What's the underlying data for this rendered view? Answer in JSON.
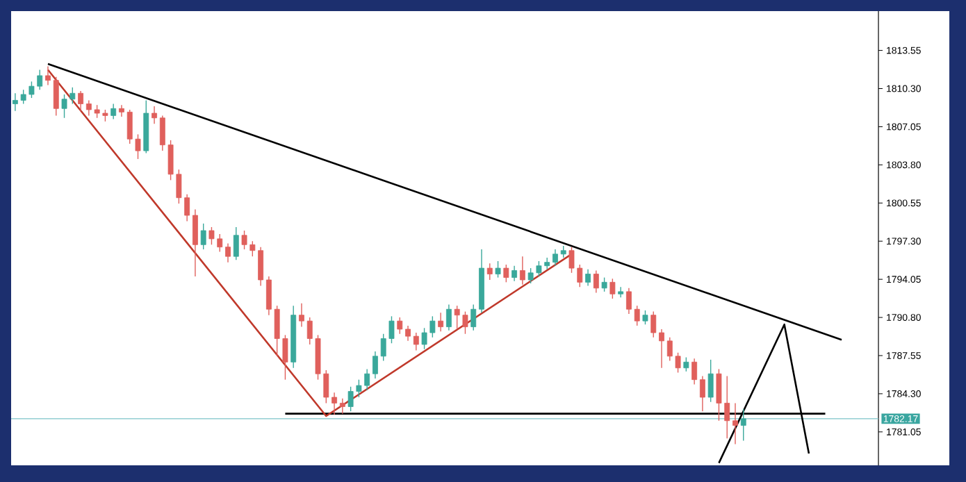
{
  "chart_data": {
    "type": "candlestick",
    "categories": [
      null,
      null,
      null,
      null,
      null,
      null,
      null,
      null,
      null,
      null,
      null,
      null,
      null,
      null,
      null,
      null,
      null,
      null,
      null,
      null,
      null,
      null,
      null,
      null,
      null,
      null,
      null,
      null,
      null,
      null,
      null,
      null,
      null,
      null,
      null,
      null,
      null,
      null,
      null,
      null,
      null,
      null,
      null,
      null,
      null,
      null,
      null,
      null,
      null,
      null,
      null,
      null,
      null,
      null,
      null,
      null,
      null,
      null,
      null,
      null,
      null,
      null,
      null,
      null,
      null,
      null,
      null,
      null,
      null,
      null,
      null,
      null,
      null,
      null,
      null,
      null,
      null,
      null,
      null,
      null,
      null,
      null,
      null,
      null,
      null,
      null,
      null,
      null,
      null,
      null,
      null,
      null,
      null,
      null,
      null,
      null,
      null,
      null,
      null,
      null,
      null,
      null,
      null,
      null,
      null,
      null
    ],
    "ohlc": [
      [
        1809.0,
        1809.9,
        1808.4,
        1809.3
      ],
      [
        1809.3,
        1810.2,
        1809.0,
        1809.8
      ],
      [
        1809.8,
        1810.9,
        1809.5,
        1810.5
      ],
      [
        1810.5,
        1811.9,
        1810.2,
        1811.4
      ],
      [
        1811.4,
        1812.2,
        1810.6,
        1811.0
      ],
      [
        1811.0,
        1811.3,
        1808.0,
        1808.6
      ],
      [
        1808.6,
        1809.8,
        1807.8,
        1809.4
      ],
      [
        1809.4,
        1810.4,
        1809.0,
        1809.9
      ],
      [
        1809.9,
        1810.1,
        1808.4,
        1809.0
      ],
      [
        1809.0,
        1809.3,
        1808.0,
        1808.5
      ],
      [
        1808.5,
        1808.9,
        1807.8,
        1808.2
      ],
      [
        1808.2,
        1808.5,
        1807.5,
        1808.0
      ],
      [
        1808.0,
        1809.0,
        1807.7,
        1808.6
      ],
      [
        1808.6,
        1808.9,
        1807.9,
        1808.3
      ],
      [
        1808.3,
        1808.5,
        1805.6,
        1806.0
      ],
      [
        1806.0,
        1806.4,
        1804.3,
        1805.0
      ],
      [
        1805.0,
        1809.3,
        1804.8,
        1808.2
      ],
      [
        1808.2,
        1808.8,
        1807.3,
        1807.8
      ],
      [
        1807.8,
        1808.0,
        1805.0,
        1805.5
      ],
      [
        1805.5,
        1805.9,
        1802.5,
        1803.0
      ],
      [
        1803.0,
        1803.4,
        1800.5,
        1801.0
      ],
      [
        1801.0,
        1801.3,
        1799.0,
        1799.5
      ],
      [
        1799.5,
        1800.0,
        1794.3,
        1797.0
      ],
      [
        1797.0,
        1798.8,
        1796.6,
        1798.2
      ],
      [
        1798.2,
        1798.5,
        1797.0,
        1797.5
      ],
      [
        1797.5,
        1797.9,
        1796.4,
        1796.8
      ],
      [
        1796.8,
        1797.1,
        1795.5,
        1796.0
      ],
      [
        1796.0,
        1798.5,
        1795.7,
        1797.8
      ],
      [
        1797.8,
        1798.2,
        1796.6,
        1797.0
      ],
      [
        1797.0,
        1797.3,
        1796.0,
        1796.5
      ],
      [
        1796.5,
        1796.8,
        1793.5,
        1794.0
      ],
      [
        1794.0,
        1794.3,
        1791.0,
        1791.5
      ],
      [
        1791.5,
        1791.8,
        1787.5,
        1789.0
      ],
      [
        1789.0,
        1789.3,
        1785.5,
        1787.0
      ],
      [
        1787.0,
        1791.8,
        1786.5,
        1791.0
      ],
      [
        1791.0,
        1792.0,
        1790.0,
        1790.5
      ],
      [
        1790.5,
        1790.8,
        1788.5,
        1789.0
      ],
      [
        1789.0,
        1789.3,
        1785.5,
        1786.0
      ],
      [
        1786.0,
        1786.3,
        1783.5,
        1784.0
      ],
      [
        1784.0,
        1784.4,
        1782.5,
        1783.5
      ],
      [
        1783.5,
        1783.9,
        1782.6,
        1783.2
      ],
      [
        1783.2,
        1784.9,
        1782.8,
        1784.5
      ],
      [
        1784.5,
        1785.5,
        1784.0,
        1785.0
      ],
      [
        1785.0,
        1786.4,
        1784.6,
        1786.0
      ],
      [
        1786.0,
        1787.9,
        1785.6,
        1787.5
      ],
      [
        1787.5,
        1789.4,
        1787.1,
        1789.0
      ],
      [
        1789.0,
        1790.9,
        1788.6,
        1790.5
      ],
      [
        1790.5,
        1790.8,
        1789.4,
        1789.8
      ],
      [
        1789.8,
        1790.1,
        1788.8,
        1789.2
      ],
      [
        1789.2,
        1789.5,
        1788.0,
        1788.5
      ],
      [
        1788.5,
        1789.9,
        1788.1,
        1789.5
      ],
      [
        1789.5,
        1790.9,
        1789.1,
        1790.5
      ],
      [
        1790.5,
        1791.2,
        1789.6,
        1790.0
      ],
      [
        1790.0,
        1791.9,
        1789.7,
        1791.5
      ],
      [
        1791.5,
        1791.8,
        1789.8,
        1791.0
      ],
      [
        1791.0,
        1791.3,
        1789.4,
        1790.0
      ],
      [
        1790.0,
        1791.9,
        1789.7,
        1791.5
      ],
      [
        1791.5,
        1796.6,
        1791.2,
        1795.0
      ],
      [
        1795.0,
        1795.4,
        1794.0,
        1794.5
      ],
      [
        1794.5,
        1795.6,
        1794.2,
        1795.0
      ],
      [
        1795.0,
        1795.3,
        1793.8,
        1794.2
      ],
      [
        1794.2,
        1795.2,
        1793.9,
        1794.8
      ],
      [
        1794.8,
        1796.0,
        1793.6,
        1794.0
      ],
      [
        1794.0,
        1795.0,
        1793.7,
        1794.6
      ],
      [
        1794.6,
        1795.6,
        1794.3,
        1795.2
      ],
      [
        1795.2,
        1795.9,
        1794.9,
        1795.5
      ],
      [
        1795.5,
        1796.6,
        1795.2,
        1796.2
      ],
      [
        1796.2,
        1796.9,
        1795.9,
        1796.5
      ],
      [
        1796.5,
        1796.8,
        1794.6,
        1795.0
      ],
      [
        1795.0,
        1795.3,
        1793.4,
        1793.8
      ],
      [
        1793.8,
        1794.9,
        1793.5,
        1794.5
      ],
      [
        1794.5,
        1794.8,
        1792.9,
        1793.3
      ],
      [
        1793.3,
        1794.2,
        1793.0,
        1793.8
      ],
      [
        1793.8,
        1794.1,
        1792.4,
        1792.8
      ],
      [
        1792.8,
        1793.4,
        1792.5,
        1793.0
      ],
      [
        1793.0,
        1793.3,
        1791.1,
        1791.5
      ],
      [
        1791.5,
        1791.8,
        1790.1,
        1790.5
      ],
      [
        1790.5,
        1791.4,
        1790.2,
        1791.0
      ],
      [
        1791.0,
        1791.3,
        1789.1,
        1789.5
      ],
      [
        1789.5,
        1789.8,
        1786.5,
        1788.8
      ],
      [
        1788.8,
        1789.1,
        1787.1,
        1787.5
      ],
      [
        1787.5,
        1787.8,
        1786.1,
        1786.5
      ],
      [
        1786.5,
        1787.4,
        1786.2,
        1787.0
      ],
      [
        1787.0,
        1787.3,
        1785.1,
        1785.5
      ],
      [
        1785.5,
        1785.8,
        1782.8,
        1784.0
      ],
      [
        1784.0,
        1787.2,
        1783.6,
        1786.0
      ],
      [
        1786.0,
        1786.4,
        1782.0,
        1783.5
      ],
      [
        1783.5,
        1785.8,
        1780.5,
        1782.0
      ],
      [
        1782.0,
        1783.5,
        1780.0,
        1781.6
      ],
      [
        1781.6,
        1783.0,
        1780.3,
        1782.17
      ],
      null,
      null,
      null,
      null,
      null,
      null,
      null,
      null,
      null,
      null,
      null,
      null,
      null,
      null,
      null,
      null
    ],
    "colors": [
      "#3aa89b",
      "#3aa89b",
      "#3aa89b",
      "#3aa89b",
      "#e0605c",
      "#e0605c",
      "#3aa89b",
      "#3aa89b",
      "#e0605c",
      "#e0605c",
      "#e0605c",
      "#e0605c",
      "#3aa89b",
      "#e0605c",
      "#e0605c",
      "#e0605c",
      "#3aa89b",
      "#e0605c",
      "#e0605c",
      "#e0605c",
      "#e0605c",
      "#e0605c",
      "#e0605c",
      "#3aa89b",
      "#e0605c",
      "#e0605c",
      "#e0605c",
      "#3aa89b",
      "#e0605c",
      "#e0605c",
      "#e0605c",
      "#e0605c",
      "#e0605c",
      "#e0605c",
      "#3aa89b",
      "#e0605c",
      "#e0605c",
      "#e0605c",
      "#e0605c",
      "#e0605c",
      "#e0605c",
      "#3aa89b",
      "#3aa89b",
      "#3aa89b",
      "#3aa89b",
      "#3aa89b",
      "#3aa89b",
      "#e0605c",
      "#e0605c",
      "#e0605c",
      "#3aa89b",
      "#3aa89b",
      "#e0605c",
      "#3aa89b",
      "#e0605c",
      "#e0605c",
      "#3aa89b",
      "#3aa89b",
      "#e0605c",
      "#3aa89b",
      "#e0605c",
      "#3aa89b",
      "#e0605c",
      "#3aa89b",
      "#3aa89b",
      "#3aa89b",
      "#3aa89b",
      "#3aa89b",
      "#e0605c",
      "#e0605c",
      "#3aa89b",
      "#e0605c",
      "#3aa89b",
      "#e0605c",
      "#3aa89b",
      "#e0605c",
      "#e0605c",
      "#3aa89b",
      "#e0605c",
      "#e0605c",
      "#e0605c",
      "#e0605c",
      "#3aa89b",
      "#e0605c",
      "#e0605c",
      "#3aa89b",
      "#e0605c",
      "#e0605c",
      "#e0605c",
      "#3aa89b",
      null,
      null,
      null,
      null,
      null,
      null,
      null,
      null,
      null,
      null,
      null,
      null,
      null,
      null,
      null,
      null
    ],
    "series": [
      {
        "type": "line",
        "color": "#000000",
        "values": [
          null,
          null,
          null,
          null,
          1812.4,
          null,
          null,
          null,
          null,
          null,
          null,
          null,
          null,
          null,
          null,
          null,
          null,
          null,
          null,
          null,
          null,
          null,
          null,
          null,
          null,
          null,
          null,
          null,
          null,
          null,
          null,
          null,
          null,
          null,
          null,
          null,
          null,
          null,
          null,
          null,
          null,
          null,
          null,
          null,
          null,
          null,
          null,
          null,
          null,
          null,
          null,
          null,
          null,
          null,
          null,
          null,
          null,
          null,
          null,
          null,
          null,
          null,
          null,
          null,
          null,
          null,
          null,
          null,
          null,
          null,
          null,
          null,
          null,
          null,
          null,
          null,
          null,
          null,
          null,
          null,
          null,
          null,
          null,
          null,
          null,
          null,
          null,
          null,
          null,
          null,
          null,
          null,
          null,
          null,
          null,
          null,
          null,
          null,
          null,
          null,
          null,
          1788.9,
          null,
          null,
          null,
          null
        ]
      },
      {
        "type": "line",
        "color": "#000000",
        "values": [
          null,
          null,
          null,
          null,
          null,
          null,
          null,
          null,
          null,
          null,
          null,
          null,
          null,
          null,
          null,
          null,
          null,
          null,
          null,
          null,
          null,
          null,
          null,
          null,
          null,
          null,
          null,
          null,
          null,
          null,
          null,
          null,
          null,
          1782.6,
          null,
          null,
          null,
          null,
          null,
          null,
          null,
          null,
          null,
          null,
          null,
          null,
          null,
          null,
          null,
          null,
          null,
          null,
          null,
          null,
          null,
          null,
          null,
          null,
          null,
          null,
          null,
          null,
          null,
          null,
          null,
          null,
          null,
          null,
          null,
          null,
          null,
          null,
          null,
          null,
          null,
          null,
          null,
          null,
          null,
          null,
          null,
          null,
          null,
          null,
          null,
          null,
          null,
          null,
          null,
          null,
          null,
          null,
          null,
          null,
          null,
          null,
          null,
          null,
          null,
          1782.6,
          null,
          null,
          null,
          null,
          null,
          null
        ]
      },
      {
        "type": "line",
        "color": "#c0392b",
        "values": [
          null,
          null,
          null,
          null,
          1811.9,
          null,
          null,
          null,
          null,
          null,
          null,
          null,
          null,
          null,
          null,
          null,
          null,
          null,
          null,
          null,
          null,
          null,
          null,
          null,
          null,
          null,
          null,
          null,
          null,
          null,
          null,
          null,
          null,
          null,
          null,
          null,
          null,
          null,
          1782.4,
          null,
          null,
          null,
          null,
          null,
          null,
          null,
          null,
          null,
          null,
          null,
          null,
          null,
          null,
          null,
          null,
          null,
          null,
          null,
          null,
          null,
          null,
          null,
          null,
          null,
          null,
          null,
          null,
          null,
          1796.2,
          null,
          null,
          null,
          null,
          null,
          null,
          null,
          null,
          null,
          null,
          null,
          null,
          null,
          null,
          null,
          null,
          null,
          null,
          null,
          null,
          null,
          null,
          null,
          null,
          null,
          null,
          null,
          null,
          null,
          null,
          null,
          null,
          null,
          null,
          null,
          null,
          null
        ]
      },
      {
        "type": "line",
        "color": "#000000",
        "values": [
          null,
          null,
          null,
          null,
          null,
          null,
          null,
          null,
          null,
          null,
          null,
          null,
          null,
          null,
          null,
          null,
          null,
          null,
          null,
          null,
          null,
          null,
          null,
          null,
          null,
          null,
          null,
          null,
          null,
          null,
          null,
          null,
          null,
          null,
          null,
          null,
          null,
          null,
          null,
          null,
          null,
          null,
          null,
          null,
          null,
          null,
          null,
          null,
          null,
          null,
          null,
          null,
          null,
          null,
          null,
          null,
          null,
          null,
          null,
          null,
          null,
          null,
          null,
          null,
          null,
          null,
          null,
          null,
          null,
          null,
          null,
          null,
          null,
          null,
          null,
          null,
          null,
          null,
          null,
          null,
          null,
          null,
          null,
          null,
          null,
          null,
          1778.4,
          null,
          null,
          null,
          null,
          null,
          null,
          null,
          1790.2,
          null,
          null,
          1779.2,
          null,
          null,
          null,
          null,
          null,
          null,
          null,
          null
        ]
      }
    ],
    "ylim": [
      1778.2,
      1816.9
    ],
    "yticks": [
      {
        "value": 1781.05,
        "label": "1781.05"
      },
      {
        "value": 1784.3,
        "label": "1784.30"
      },
      {
        "value": 1787.55,
        "label": "1787.55"
      },
      {
        "value": 1790.8,
        "label": "1790.80"
      },
      {
        "value": 1794.05,
        "label": "1794.05"
      },
      {
        "value": 1797.3,
        "label": "1797.30"
      },
      {
        "value": 1800.55,
        "label": "1800.55"
      },
      {
        "value": 1803.8,
        "label": "1803.80"
      },
      {
        "value": 1807.05,
        "label": "1807.05"
      },
      {
        "value": 1810.3,
        "label": "1810.30"
      },
      {
        "value": 1813.55,
        "label": "1813.55"
      }
    ],
    "ref_lines": [
      {
        "axis": "y",
        "value": 1782.17,
        "label": "1782.17",
        "color": "#7cc4c8"
      }
    ],
    "tick_labels": "y"
  }
}
